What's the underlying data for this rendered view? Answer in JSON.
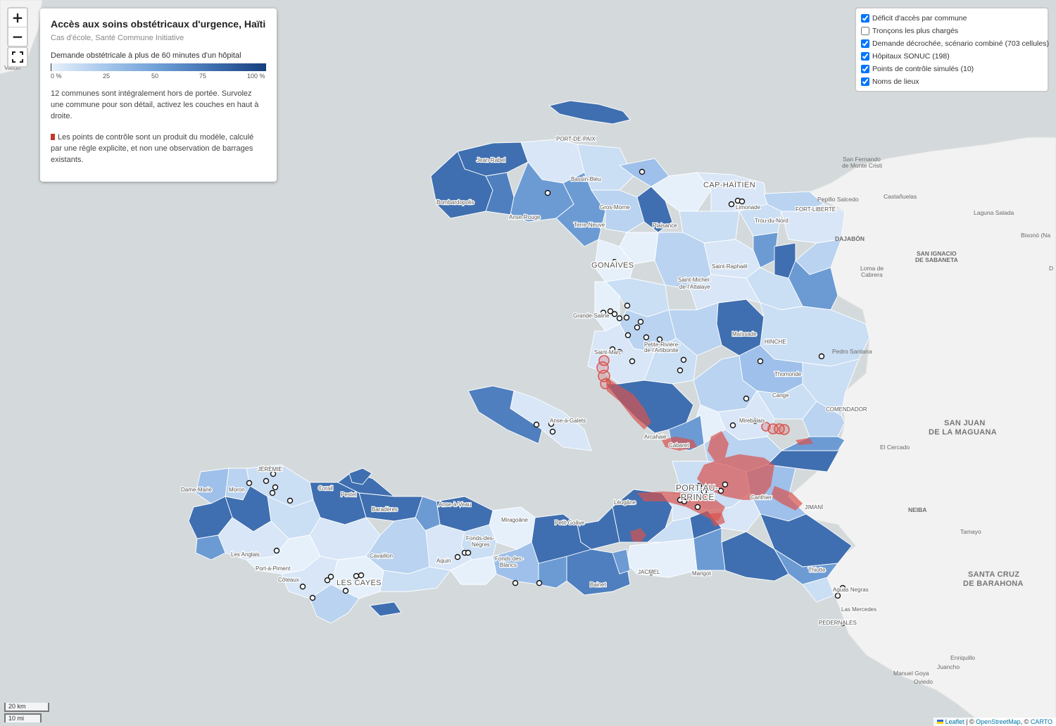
{
  "info_panel": {
    "title": "Accès aux soins obstétricaux d'urgence, Haïti",
    "subtitle": "Cas d'école, Santé Commune Initiative",
    "legend_title": "Demande obstétricale à plus de 60 minutes d'un hôpital",
    "legend_ticks": [
      "0 %",
      "25",
      "50",
      "75",
      "100 %"
    ],
    "paragraph_1": "12 communes sont intégralement hors de portée. Survolez une commune pour son détail, activez les couches en haut à droite.",
    "paragraph_2": "Les points de contrôle sont un produit du modèle, calculé par une règle explicite, et non une observation de barrages existants.",
    "legend_colors": [
      "#e6f0fb",
      "#163f7d"
    ],
    "checkpoint_color": "#c0392b"
  },
  "zoom": {
    "in_label": "+",
    "out_label": "−"
  },
  "layers": [
    {
      "label": "Déficit d'accès par commune",
      "checked": true
    },
    {
      "label": "Tronçons les plus chargés",
      "checked": false
    },
    {
      "label": "Demande décrochée, scénario combiné (703 cellules)",
      "checked": true
    },
    {
      "label": "Hôpitaux SONUC (198)",
      "checked": true
    },
    {
      "label": "Points de contrôle simulés (10)",
      "checked": true
    },
    {
      "label": "Noms de lieux",
      "checked": true
    }
  ],
  "scale": {
    "km": "20 km",
    "mi": "10 mi"
  },
  "attribution": {
    "leaflet": "Leaflet",
    "sep1": " | © ",
    "osm": "OpenStreetMap",
    "sep2": ", © ",
    "carto": "CARTO"
  },
  "place_labels": {
    "port_de_paix": "PORT-DE-PAIX",
    "jean_rabel": "Jean-Rabel",
    "bombardopolis": "Bombardopolis",
    "bassin_bleu": "Bassin-Bleu",
    "gros_morne": "Gros-Morne",
    "anse_rouge": "Anse-Rouge",
    "terre_neuve": "Terre-Neuve",
    "cap_haitien": "CAP-HAÏTIEN",
    "limonade": "Limonade",
    "plaisance": "Plaisance",
    "gonaives": "GONAÏVES",
    "saint_raphael": "Saint-Raphaël",
    "saint_michel": "Saint-Michel-de-l'Attalaye",
    "trou_du_nord": "Trou-du-Nord",
    "fort_liberte": "FORT-LIBERTÉ",
    "dajabon": "DAJABÓN",
    "grande_saline": "Grande-Saline",
    "petite_riviere": "Petite-Rivière-de-l'Artibonite",
    "maissade": "Maïssade",
    "hinche": "HINCHE",
    "saint_marc": "Saint-Marc",
    "thomonde": "Thomonde",
    "cange": "Cange",
    "mirebalais": "Mirebalais",
    "anse_a_galets": "Anse-à-Galets",
    "arcahaie": "Arcahaie",
    "cabaret": "Cabaret",
    "comendador": "COMENDADOR",
    "port_au_prince": "PORT-AU-PRINCE",
    "canthier": "Canthier",
    "leogane": "Léogâne",
    "jimani": "JIMANÍ",
    "jeremie": "JÉRÉMIE",
    "dame_marie": "Dame-Marie",
    "moron": "Moron",
    "corail": "Corail",
    "pestel": "Pestel",
    "baradere": "Baradères",
    "anse_a_veau": "Anse-à-Veau",
    "miragoane": "Miragoâne",
    "petit_goave": "Petit-Goâve",
    "fonds_des_negres": "Fonds-des-Nègres",
    "cavaillon": "Cavaillon",
    "aquin": "Aquin",
    "fonds_des_blancs": "Fonds-des-Blancs",
    "les_anglais": "Les Anglais",
    "port_a_piment": "Port-à-Piment",
    "coteaux": "Côteaux",
    "les_cayes": "LES CAYES",
    "bainet": "Bainet",
    "jacmel": "JACMEL",
    "marigot": "Marigot",
    "thiotte": "Thiotte",
    "aguas_negras": "Aguas Negras",
    "las_mercedes": "Las Mercedes",
    "pedernales": "PEDERNALES",
    "san_fernando": "San Fernando de Monte Cristi",
    "castanuelas": "Castañuelas",
    "pepillo": "Pepillo Salcedo",
    "laguna_salada": "Laguna Salada",
    "bisono": "Bisonó (Na",
    "san_ignacio": "SAN IGNACIO DE SABANETA",
    "loma_de_cabrera": "Loma de Cabrera",
    "pedro_santana": "Pedro Santana",
    "san_juan": "SAN JUAN DE LA MAGUANA",
    "el_cercado": "El Cercado",
    "neiba": "NEIBA",
    "tamayo": "Tamayo",
    "santa_cruz": "SANTA CRUZ DE BARAHONA",
    "enriquillo": "Enriquillo",
    "juancho": "Juancho",
    "manuel_goya": "Manuel Goya",
    "oviedo": "Oviedo",
    "el_dr": "D",
    "el_dr2": "D",
    "vallon": "Vallon"
  }
}
